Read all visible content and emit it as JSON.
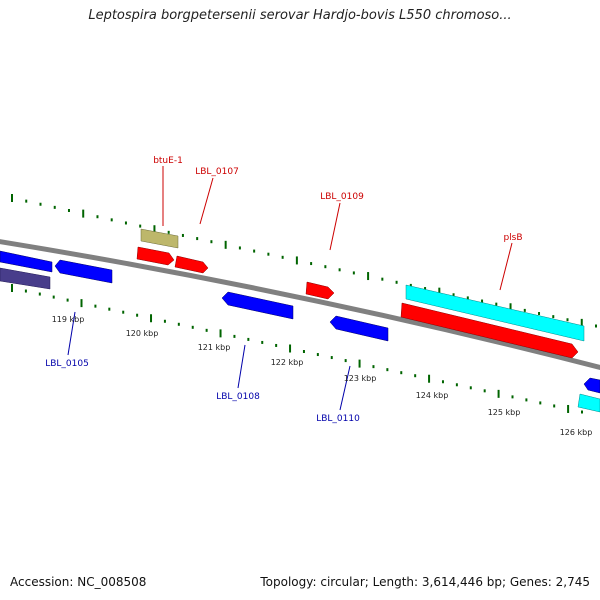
{
  "title": "Leptospira borgpetersenii serovar Hardjo-bovis L550 chromoso...",
  "footer": {
    "accession": "Accession: NC_008508",
    "summary": "Topology: circular; Length: 3,614,446 bp; Genes: 2,745"
  },
  "colors": {
    "backbone": "#808080",
    "tick_dash": "#006400",
    "forward_gene": "#ff0000",
    "reverse_gene": "#0000ff",
    "cyan_gene": "#00ffff",
    "olive_gene": "#bdb76b",
    "slate_gene": "#483d8b",
    "top_label": "#cc0000",
    "bottom_label": "#0000aa"
  },
  "kbp_ticks": [
    "119 kbp",
    "120 kbp",
    "121 kbp",
    "122 kbp",
    "123 kbp",
    "124 kbp",
    "125 kbp",
    "126 kbp"
  ],
  "gene_labels_top": [
    "btuE-1",
    "LBL_0107",
    "LBL_0109",
    "plsB"
  ],
  "gene_labels_bottom": [
    "LBL_0105",
    "LBL_0108",
    "LBL_0110"
  ]
}
